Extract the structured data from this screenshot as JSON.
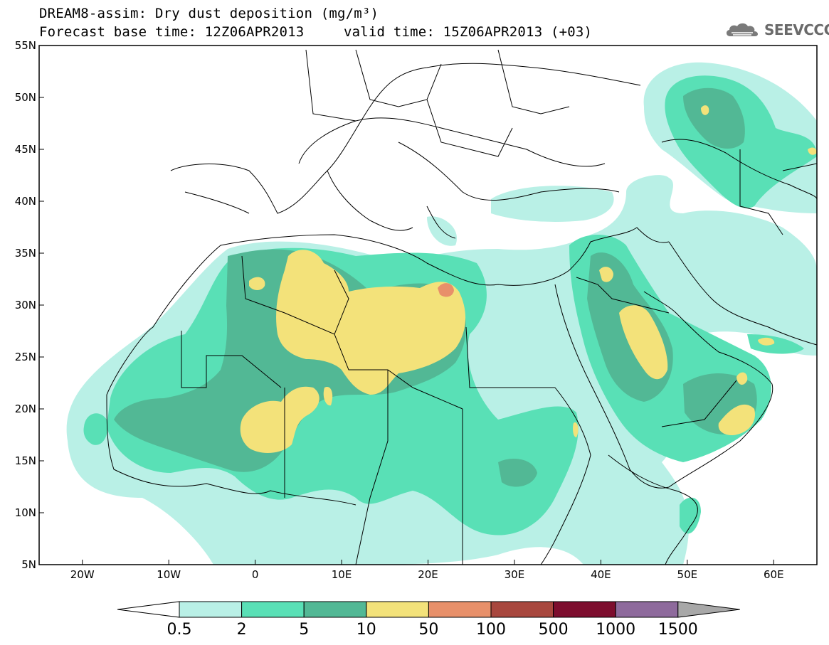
{
  "title": {
    "line1": "DREAM8-assim: Dry dust deposition (mg/m³)",
    "line2_base": "Forecast base time: 12Z06APR2013",
    "line2_valid": "valid time: 15Z06APR2013 (+03)"
  },
  "logo": {
    "text": "SEEVCCC",
    "icon": "cloud-icon"
  },
  "map": {
    "lon_range": [
      -25,
      65
    ],
    "lat_range": [
      5,
      55
    ],
    "lat_ticks": [
      "55N",
      "50N",
      "45N",
      "40N",
      "35N",
      "30N",
      "25N",
      "20N",
      "15N",
      "10N",
      "5N"
    ],
    "lon_ticks": [
      "20W",
      "10W",
      "0",
      "10E",
      "20E",
      "30E",
      "40E",
      "50E",
      "60E"
    ],
    "field": "Dry dust deposition"
  },
  "colorbar": {
    "levels": [
      "0.5",
      "2",
      "5",
      "10",
      "50",
      "100",
      "500",
      "1000",
      "1500"
    ],
    "colors": [
      "#ffffff",
      "#b9f0e6",
      "#59e0b6",
      "#52b895",
      "#f3e27a",
      "#e8906a",
      "#a8473e",
      "#7d0d2e",
      "#8e6a9c",
      "#a8a8a8"
    ]
  }
}
